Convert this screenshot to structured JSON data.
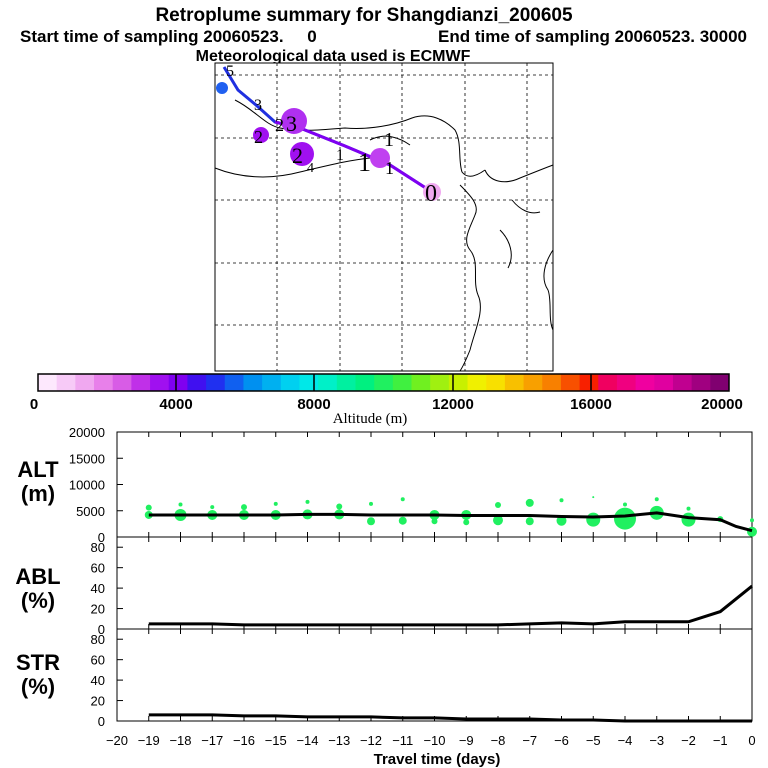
{
  "title": "Retroplume summary for Shangdianzi_200605",
  "subtitle_start": "Start time of sampling 20060523.     0",
  "subtitle_end": "End time of sampling 20060523. 30000",
  "met_line": "Meteorological data used is ECMWF",
  "colorbar": {
    "label": "Altitude (m)",
    "ticks": [
      "0",
      "4000",
      "8000",
      "12000",
      "16000",
      "20000"
    ],
    "colors": [
      "#fde8fd",
      "#f7caf7",
      "#f0a8f0",
      "#e880ea",
      "#d85ce6",
      "#c030e8",
      "#a010f0",
      "#8000f0",
      "#4010f0",
      "#2030f0",
      "#1060f0",
      "#0090f0",
      "#00b0f0",
      "#00d0f0",
      "#00e8e8",
      "#00f0c8",
      "#00f0a0",
      "#00f080",
      "#20f060",
      "#40f040",
      "#70f020",
      "#a0f010",
      "#c8f000",
      "#f0f000",
      "#f8e000",
      "#f8c000",
      "#f8a000",
      "#f88000",
      "#f85000",
      "#f82000",
      "#f00060",
      "#f00080",
      "#f000a0",
      "#e000a0",
      "#c00090",
      "#a00080",
      "#800070"
    ]
  },
  "map": {
    "trajectory_labels": [
      "0",
      "1",
      "1",
      "1",
      "1",
      "2",
      "2",
      "3",
      "2",
      "3",
      "4",
      "5"
    ]
  },
  "panels": {
    "alt_label": [
      "ALT",
      "(m)"
    ],
    "abl_label": [
      "ABL",
      "(%)"
    ],
    "str_label": [
      "STR",
      "(%)"
    ],
    "alt_ticks": [
      "20000",
      "15000",
      "10000",
      "5000",
      "0"
    ],
    "pct_ticks": [
      "80",
      "60",
      "40",
      "20",
      "0"
    ],
    "x_ticks": [
      "−20",
      "−19",
      "−18",
      "−17",
      "−16",
      "−15",
      "−14",
      "−13",
      "−12",
      "−11",
      "−10",
      "−9",
      "−8",
      "−7",
      "−6",
      "−5",
      "−4",
      "−3",
      "−2",
      "−1",
      "0"
    ],
    "x_label": "Travel time (days)"
  },
  "chart_data": {
    "type": "line",
    "x": [
      -20,
      -19,
      -18,
      -17,
      -16,
      -15,
      -14,
      -13,
      -12,
      -11,
      -10,
      -9,
      -8,
      -7,
      -6,
      -5,
      -4,
      -3,
      -2,
      -1,
      0
    ],
    "xlabel": "Travel time (days)",
    "series": [
      {
        "name": "ALT (m)",
        "ylim": [
          0,
          20000
        ],
        "x": [
          -19,
          -18,
          -17,
          -16,
          -15,
          -14,
          -13,
          -12,
          -11,
          -10,
          -9,
          -8,
          -7,
          -6,
          -5,
          -4,
          -3,
          -2,
          -1,
          -0.5,
          0
        ],
        "values": [
          4200,
          4200,
          4200,
          4200,
          4200,
          4300,
          4300,
          4200,
          4200,
          4200,
          4100,
          4100,
          4100,
          3900,
          3800,
          4000,
          4600,
          3700,
          3300,
          2000,
          1200
        ]
      },
      {
        "name": "ABL (%)",
        "ylim": [
          0,
          90
        ],
        "x": [
          -19,
          -18,
          -17,
          -16,
          -15,
          -14,
          -13,
          -12,
          -11,
          -10,
          -9,
          -8,
          -7,
          -6,
          -5,
          -4,
          -3,
          -2,
          -1,
          0
        ],
        "values": [
          5,
          5,
          5,
          4,
          4,
          4,
          4,
          4,
          4,
          4,
          4,
          4,
          5,
          6,
          5,
          7,
          7,
          7,
          17,
          42
        ]
      },
      {
        "name": "STR (%)",
        "ylim": [
          0,
          90
        ],
        "x": [
          -19,
          -18,
          -17,
          -16,
          -15,
          -14,
          -13,
          -12,
          -11,
          -10,
          -9,
          -8,
          -7,
          -6,
          -5,
          -4,
          -3,
          -2,
          -1,
          0
        ],
        "values": [
          6,
          6,
          6,
          5,
          5,
          4,
          4,
          4,
          3,
          3,
          2,
          2,
          2,
          1,
          1,
          0,
          0,
          0,
          0,
          0
        ]
      }
    ],
    "alt_bubbles": [
      {
        "x": -19,
        "y": 4200,
        "r": 4
      },
      {
        "x": -19,
        "y": 5600,
        "r": 3
      },
      {
        "x": -18,
        "y": 4200,
        "r": 6
      },
      {
        "x": -18,
        "y": 6200,
        "r": 2
      },
      {
        "x": -17,
        "y": 4200,
        "r": 5
      },
      {
        "x": -17,
        "y": 5700,
        "r": 2
      },
      {
        "x": -16,
        "y": 4200,
        "r": 5
      },
      {
        "x": -16,
        "y": 5700,
        "r": 3
      },
      {
        "x": -15,
        "y": 4200,
        "r": 5
      },
      {
        "x": -15,
        "y": 6300,
        "r": 2
      },
      {
        "x": -14,
        "y": 4300,
        "r": 5
      },
      {
        "x": -14,
        "y": 6700,
        "r": 2
      },
      {
        "x": -13,
        "y": 4300,
        "r": 5
      },
      {
        "x": -13,
        "y": 5800,
        "r": 3
      },
      {
        "x": -12,
        "y": 3000,
        "r": 4
      },
      {
        "x": -12,
        "y": 6300,
        "r": 2
      },
      {
        "x": -11,
        "y": 3100,
        "r": 4
      },
      {
        "x": -11,
        "y": 7200,
        "r": 2
      },
      {
        "x": -10,
        "y": 4200,
        "r": 5
      },
      {
        "x": -10,
        "y": 3000,
        "r": 3
      },
      {
        "x": -9,
        "y": 4200,
        "r": 5
      },
      {
        "x": -9,
        "y": 2800,
        "r": 3
      },
      {
        "x": -8,
        "y": 3200,
        "r": 5
      },
      {
        "x": -8,
        "y": 6100,
        "r": 3
      },
      {
        "x": -7,
        "y": 3000,
        "r": 4
      },
      {
        "x": -7,
        "y": 6500,
        "r": 4
      },
      {
        "x": -6,
        "y": 3100,
        "r": 5
      },
      {
        "x": -6,
        "y": 7000,
        "r": 2
      },
      {
        "x": -5,
        "y": 3300,
        "r": 7
      },
      {
        "x": -5,
        "y": 7600,
        "r": 1
      },
      {
        "x": -4,
        "y": 3500,
        "r": 11
      },
      {
        "x": -4,
        "y": 6200,
        "r": 2
      },
      {
        "x": -3,
        "y": 4600,
        "r": 7
      },
      {
        "x": -3,
        "y": 7200,
        "r": 2
      },
      {
        "x": -2,
        "y": 3300,
        "r": 7
      },
      {
        "x": -2,
        "y": 5400,
        "r": 2
      },
      {
        "x": -1,
        "y": 3400,
        "r": 3
      },
      {
        "x": 0,
        "y": 1000,
        "r": 5
      },
      {
        "x": 0,
        "y": 3200,
        "r": 2
      }
    ]
  }
}
